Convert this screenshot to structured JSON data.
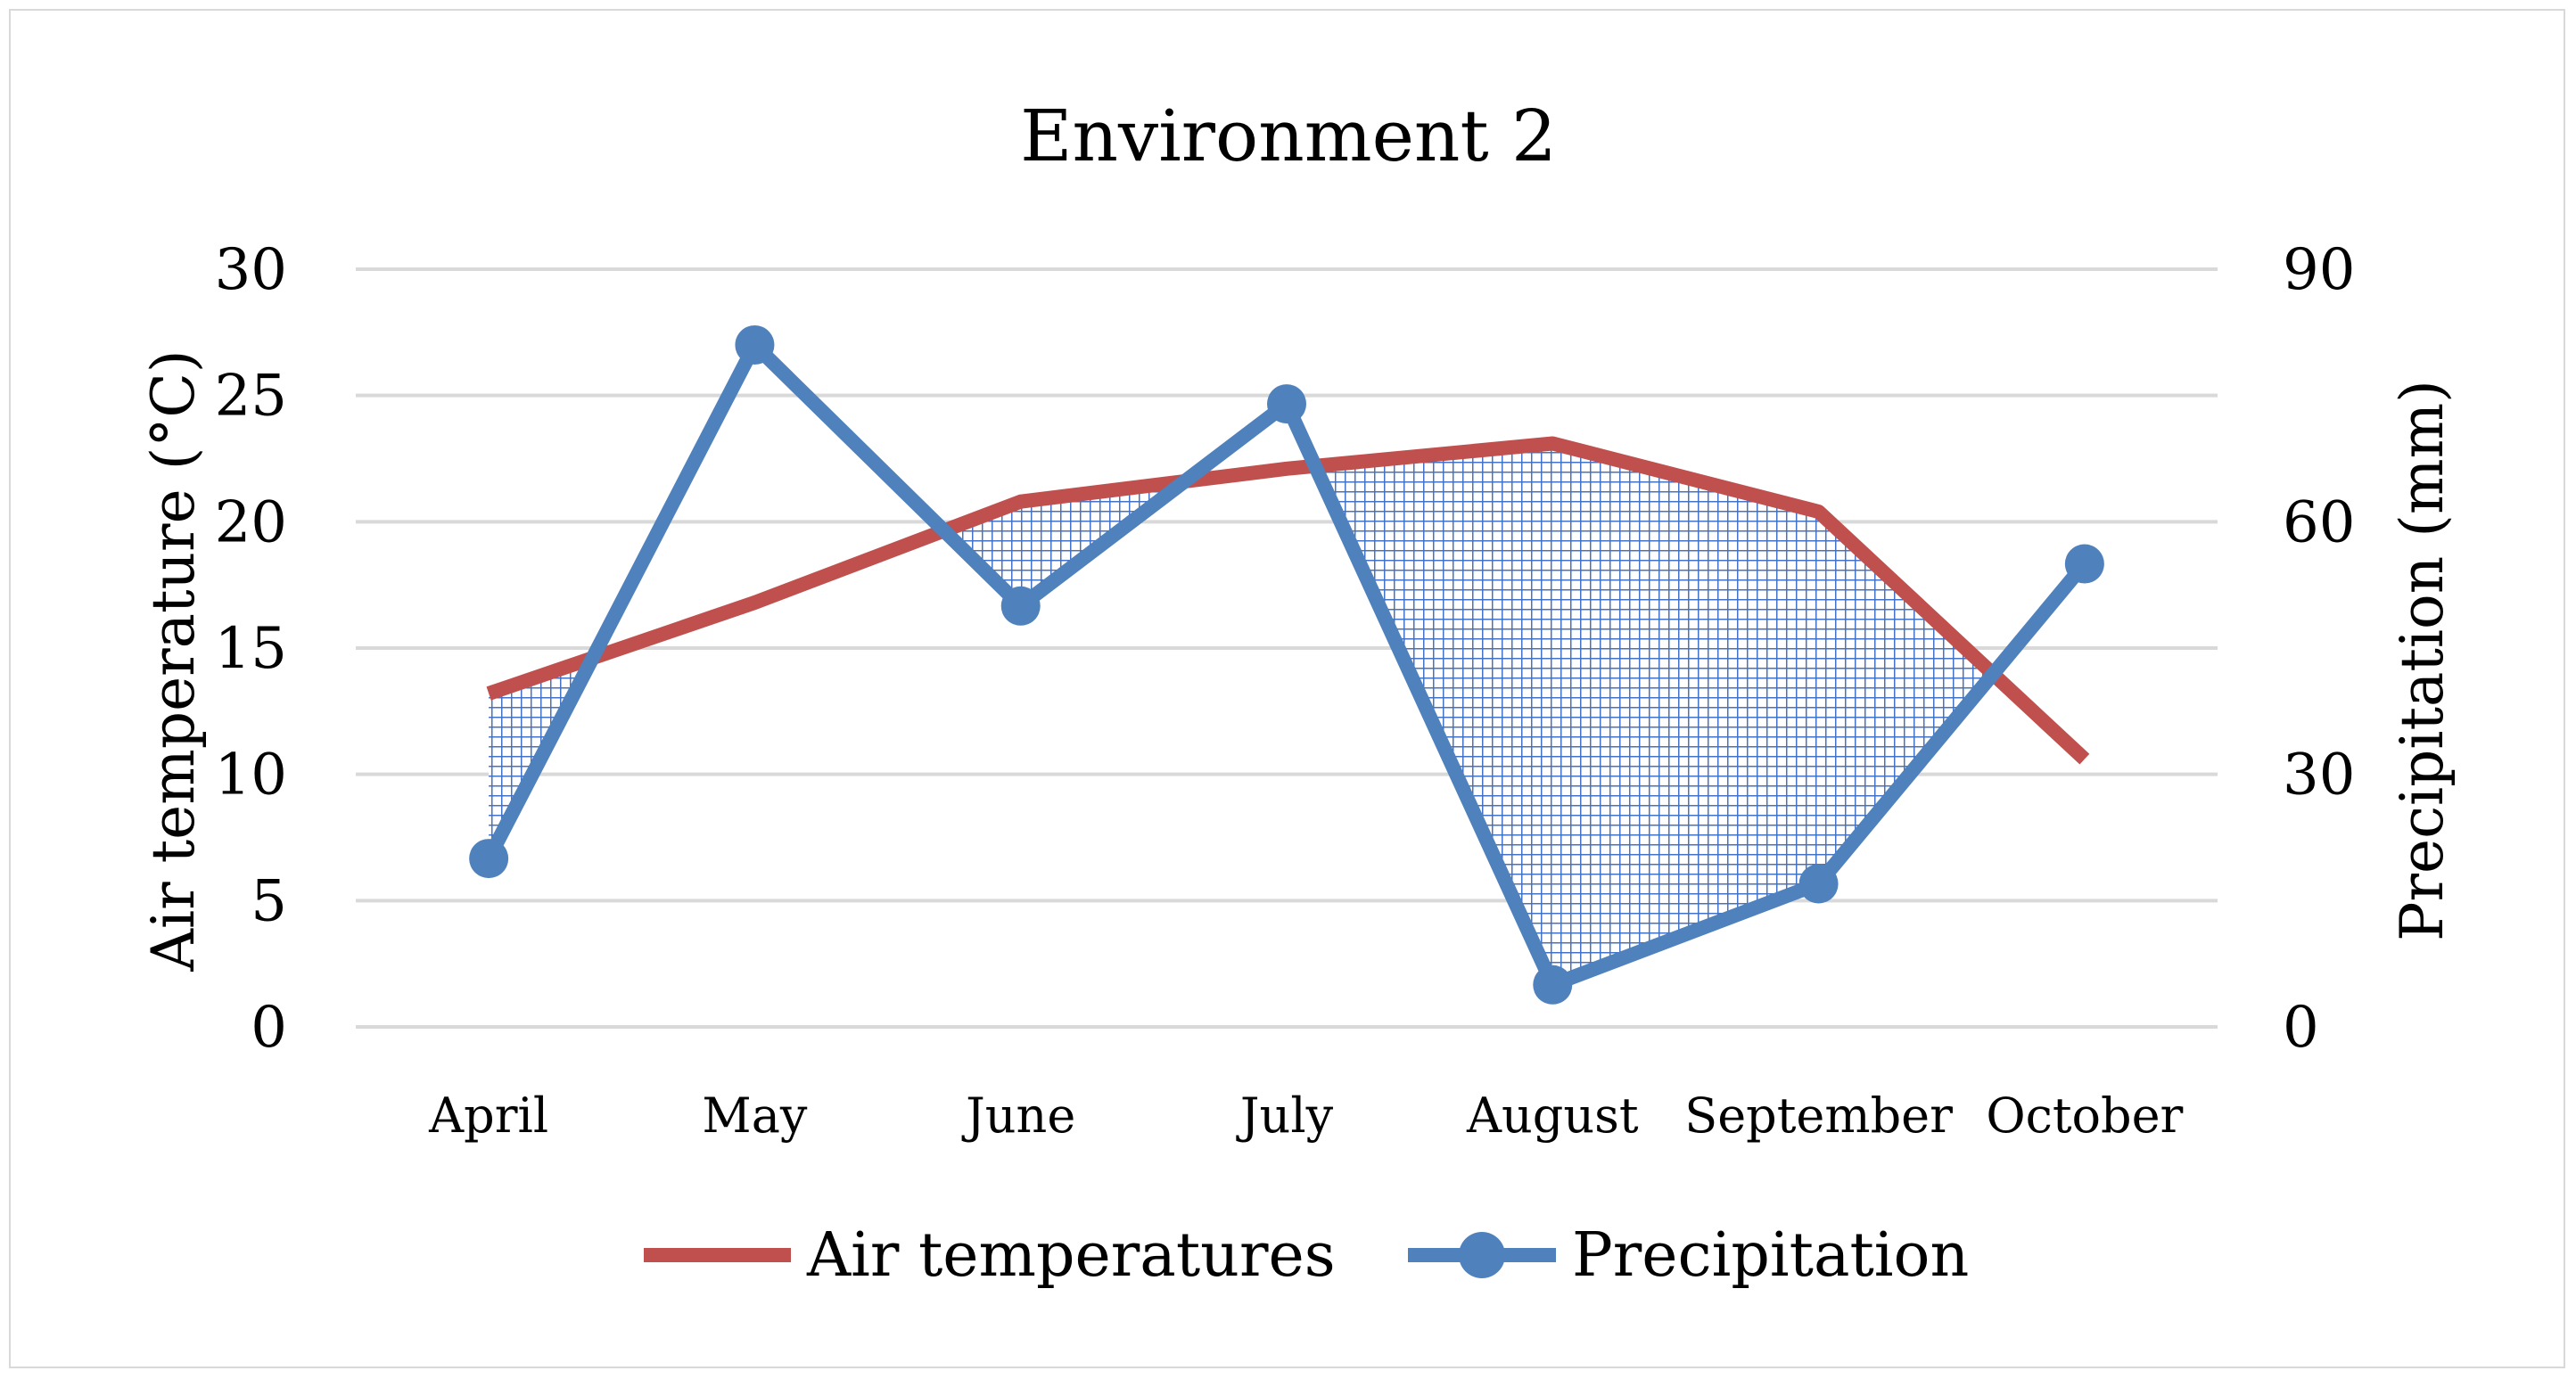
{
  "chart_data": {
    "type": "line",
    "title": "Environment 2",
    "categories": [
      "April",
      "May",
      "June",
      "July",
      "August",
      "September",
      "October"
    ],
    "y_left": {
      "label": "Air temperature (°C)",
      "lim": [
        0,
        30
      ],
      "ticks": [
        0,
        5,
        10,
        15,
        20,
        25,
        30
      ]
    },
    "y_right": {
      "label": "Precipitation (mm)",
      "lim": [
        0,
        90
      ],
      "ticks": [
        0,
        30,
        60,
        90
      ]
    },
    "grid": true,
    "legend_position": "bottom",
    "shaded_region": "hatched area where precipitation (scaled) is below air temperature",
    "series": [
      {
        "name": "Air temperatures",
        "axis": "left",
        "color": "#c0504d",
        "markers": false,
        "values": [
          13.2,
          16.8,
          20.8,
          22.1,
          23.1,
          20.4,
          10.6
        ]
      },
      {
        "name": "Precipitation",
        "axis": "right",
        "color": "#4f81bd",
        "markers": true,
        "values": [
          20,
          81,
          50,
          74,
          5,
          17,
          55
        ]
      }
    ]
  }
}
